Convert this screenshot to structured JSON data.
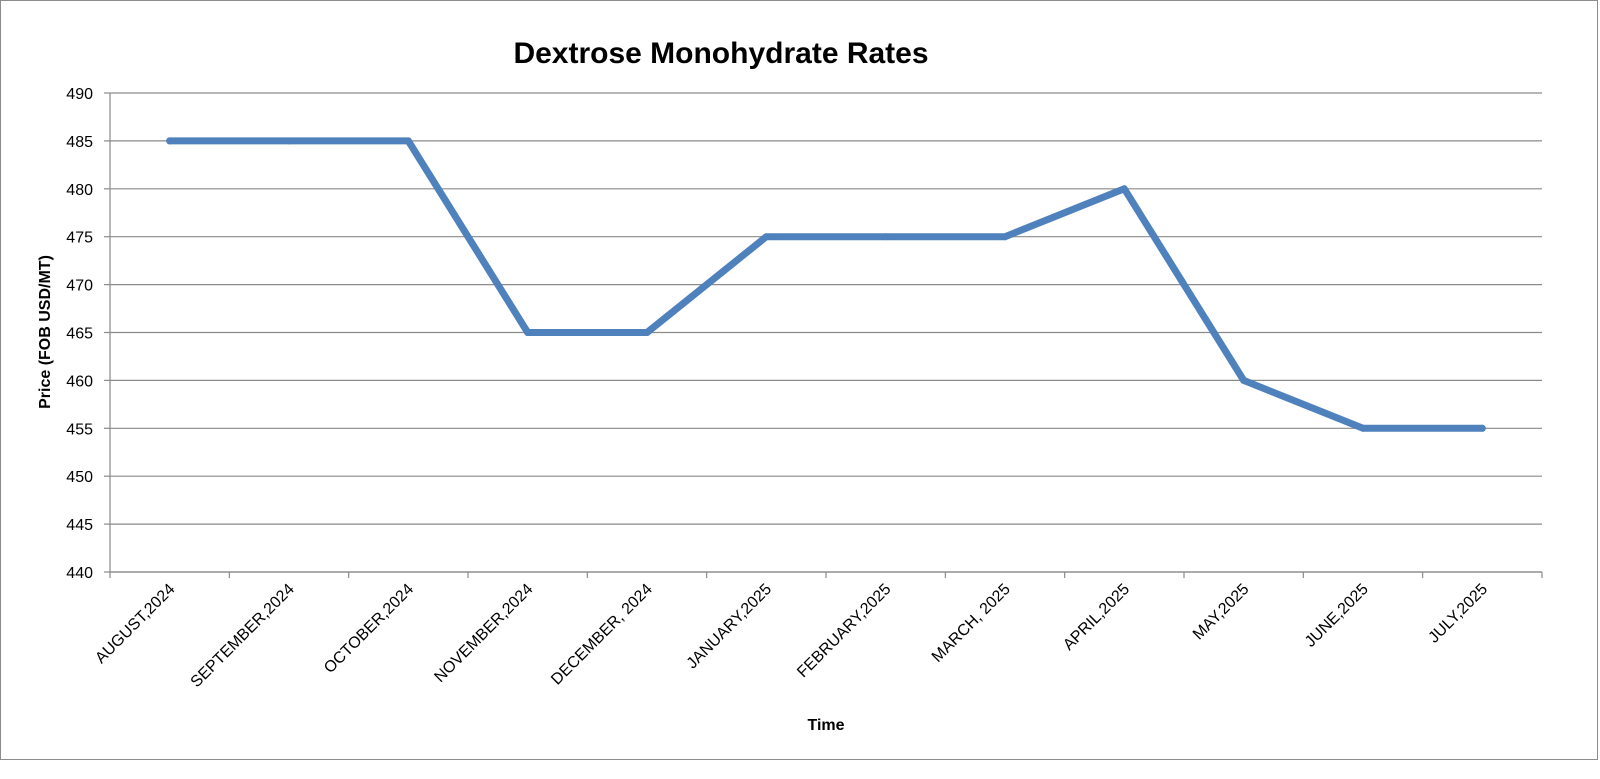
{
  "chart_data": {
    "type": "line",
    "title": "Dextrose Monohydrate Rates",
    "xlabel": "Time",
    "ylabel": "Price (FOB USD/MT)",
    "categories": [
      "AUGUST,2024",
      "SEPTEMBER,2024",
      "OCTOBER,2024",
      "NOVEMBER,2024",
      "DECEMBER, 2024",
      "JANUARY,2025",
      "FEBRUARY,2025",
      "MARCH, 2025",
      "APRIL,2025",
      "MAY,2025",
      "JUNE,2025",
      "JULY,2025"
    ],
    "series": [
      {
        "values": [
          485,
          485,
          485,
          465,
          465,
          475,
          475,
          475,
          480,
          460,
          455,
          455
        ],
        "color": "#4f81bd"
      }
    ],
    "ylim": [
      440,
      490
    ],
    "yticks": [
      440,
      445,
      450,
      455,
      460,
      465,
      470,
      475,
      480,
      485,
      490
    ],
    "grid": true,
    "legend": "none"
  }
}
